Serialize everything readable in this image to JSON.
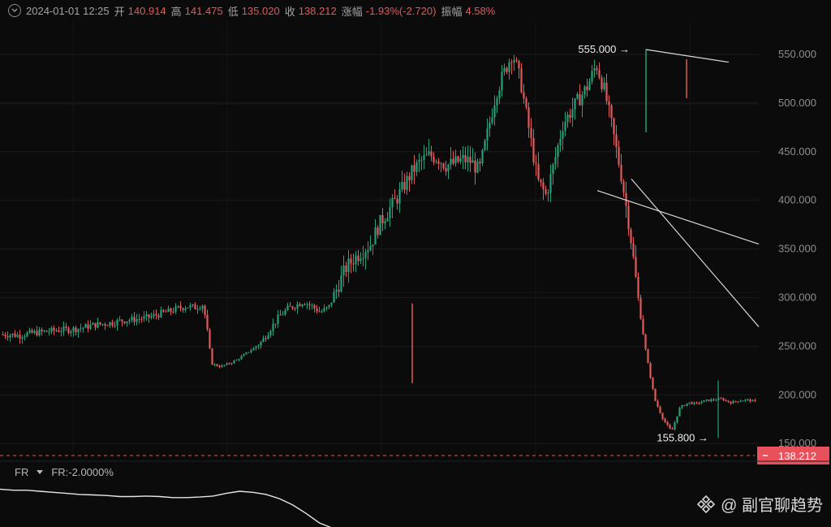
{
  "header": {
    "date": "2024-01-01 12:25",
    "open_label": "开",
    "open_value": "140.914",
    "high_label": "高",
    "high_value": "141.475",
    "low_label": "低",
    "low_value": "135.020",
    "close_label": "收",
    "close_value": "138.212",
    "change_label": "涨幅",
    "change_value": "-1.93%(-2.720)",
    "amplitude_label": "振幅",
    "amplitude_value": "4.58%"
  },
  "indicator": {
    "name": "FR",
    "label": "FR:-2.0000%"
  },
  "watermark": {
    "text": "@ 副官聊趋势"
  },
  "colors": {
    "up": "#26a17b",
    "down": "#e05a5a",
    "price_tag": "#e8505b",
    "trendline": "#d8d8d8"
  },
  "chart_data": {
    "type": "candlestick",
    "ylim": [
      140,
      575
    ],
    "y_ticks": [
      "550.000",
      "500.000",
      "450.000",
      "400.000",
      "350.000",
      "300.000",
      "250.000",
      "200.000",
      "150.000"
    ],
    "current_price": "138.212",
    "annotations": [
      {
        "text": "555.000",
        "value": 555
      },
      {
        "text": "155.800",
        "value": 155.8
      }
    ],
    "series": [
      {
        "name": "price",
        "values": [
          262,
          262,
          261,
          263,
          264,
          265,
          266,
          267,
          267,
          268,
          270,
          272,
          273,
          274,
          276,
          277,
          278,
          279,
          281,
          284,
          286,
          289,
          291,
          290,
          293,
          232,
          229,
          232,
          236,
          242,
          248,
          255,
          268,
          280,
          288,
          292,
          296,
          291,
          285,
          290,
          310,
          330,
          340,
          348,
          355,
          375,
          388,
          400,
          415,
          430,
          440,
          446,
          444,
          436,
          438,
          442,
          440,
          430,
          470,
          510,
          532,
          552,
          520,
          470,
          420,
          405,
          440,
          478,
          492,
          505,
          518,
          540,
          512,
          470,
          425,
          370,
          300,
          240,
          195,
          175,
          162,
          187,
          192,
          191,
          194,
          195,
          196,
          192,
          194,
          195,
          193
        ]
      },
      {
        "name": "FR",
        "values": [
          0.02,
          0.01,
          0.01,
          0.0,
          -0.01,
          -0.02,
          -0.03,
          -0.035,
          -0.04,
          -0.05,
          -0.05,
          -0.045,
          -0.05,
          -0.06,
          -0.06,
          -0.055,
          -0.045,
          -0.02,
          0.0,
          -0.01,
          -0.03,
          -0.07,
          -0.13,
          -0.21,
          -0.3,
          -0.35
        ]
      }
    ],
    "trendlines": [
      {
        "points": [
          [
            555,
            1
          ],
          [
            542,
            2
          ]
        ]
      },
      {
        "points": [
          [
            410,
            1
          ],
          [
            355,
            2
          ]
        ]
      },
      {
        "points": [
          [
            422,
            1
          ],
          [
            270,
            2
          ]
        ]
      }
    ]
  }
}
